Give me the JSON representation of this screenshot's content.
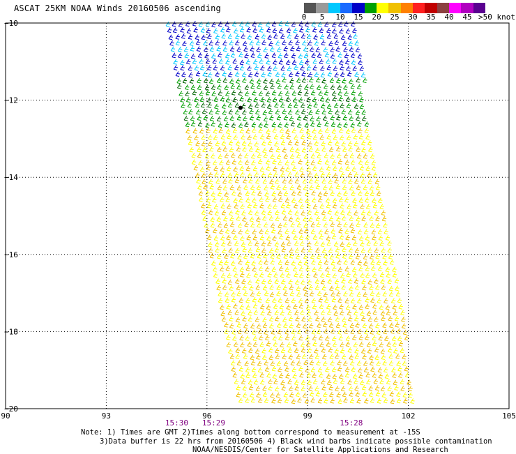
{
  "title": "ASCAT 25KM NOAA Winds 20160506 ascending",
  "colorbar": {
    "colors": [
      "#555555",
      "#9a9a9a",
      "#00c8ff",
      "#1a6bff",
      "#0000c8",
      "#00a000",
      "#ffff00",
      "#f0c000",
      "#ff8000",
      "#ff2020",
      "#c00000",
      "#8c4040",
      "#ff00ff",
      "#b000c0",
      "#5a0090"
    ],
    "labels": [
      "0",
      "5",
      "10",
      "15",
      "20",
      "25",
      "30",
      "35",
      "40",
      "45",
      ">50 knots"
    ]
  },
  "chart_data": {
    "type": "scatter",
    "title": "ASCAT 25KM NOAA Winds 20160506 ascending",
    "xlim": [
      90,
      105
    ],
    "ylim": [
      -20,
      -10
    ],
    "xticks": [
      "90",
      "93",
      "96",
      "99",
      "102",
      "105"
    ],
    "yticks": [
      "-10",
      "-12",
      "-14",
      "-16",
      "-18",
      "-20"
    ],
    "grid": true,
    "time_labels": [
      {
        "label": "15:30",
        "lon": 95.1
      },
      {
        "label": "15:29",
        "lon": 96.2
      },
      {
        "label": "15:28",
        "lon": 100.3
      }
    ],
    "swath": {
      "lat_range": [
        -20,
        -10
      ],
      "west_edge_lon": [
        94.7,
        96.9
      ],
      "east_edge_lon": [
        100.4,
        102.3
      ]
    },
    "wind_bands": [
      {
        "lat_from": -10.0,
        "lat_to": -11.5,
        "speed_knots": "15-20",
        "color": "#0000c8"
      },
      {
        "lat_from": -11.5,
        "lat_to": -12.8,
        "speed_knots": "20-25",
        "color": "#00a000"
      },
      {
        "lat_from": -12.8,
        "lat_to": -17.5,
        "speed_knots": "25-30",
        "color": "#ffff00"
      },
      {
        "lat_from": -17.5,
        "lat_to": -20.0,
        "speed_knots": "25-35",
        "color": "#f0c000"
      }
    ],
    "contamination_mark": {
      "lat": -12.2,
      "lon": 97.0
    }
  },
  "notes": {
    "line1": "Note: 1) Times are GMT 2)Times along bottom correspond to measurement at -15S",
    "line2": "3)Data buffer is 22 hrs from 20160506 4) Black wind barbs indicate possible contamination",
    "line3": "NOAA/NESDIS/Center for Satellite Applications and Research"
  }
}
